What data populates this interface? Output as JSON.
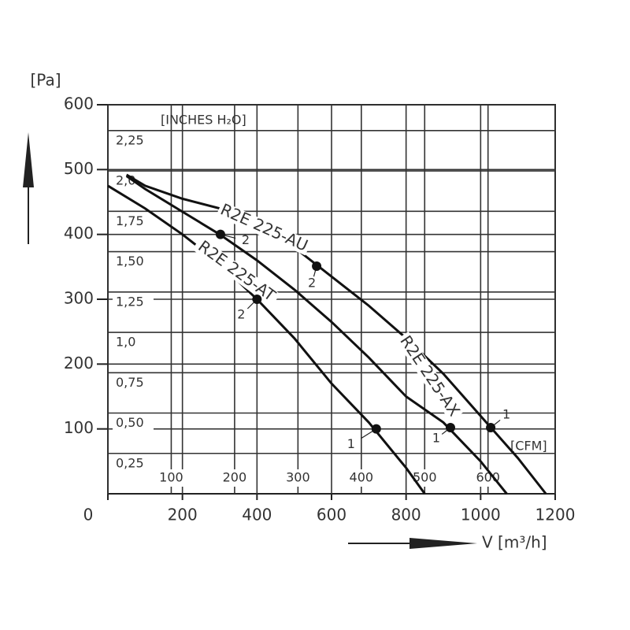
{
  "chart_data": {
    "type": "line",
    "y_label": "[Pa]",
    "x_label": "V [m³/h]",
    "y2_label": "[INCHES H₂O]",
    "x2_label": "[CFM]",
    "xlim": [
      0,
      1200
    ],
    "xticks": [
      0,
      200,
      400,
      600,
      800,
      1000,
      1200
    ],
    "ylim": [
      0,
      600
    ],
    "yticks": [
      100,
      200,
      300,
      400,
      500,
      600
    ],
    "x2lim": [
      0,
      706
    ],
    "x2ticks": [
      100,
      200,
      300,
      400,
      500,
      600
    ],
    "y2lim": [
      0,
      2.41
    ],
    "y2ticks": [
      {
        "value": 0.25,
        "label": "0,25"
      },
      {
        "value": 0.5,
        "label": "0,50"
      },
      {
        "value": 0.75,
        "label": "0,75"
      },
      {
        "value": 1.0,
        "label": "1,0"
      },
      {
        "value": 1.25,
        "label": "1,25"
      },
      {
        "value": 1.5,
        "label": "1,50"
      },
      {
        "value": 1.75,
        "label": "1,75"
      },
      {
        "value": 2.0,
        "label": "2,0"
      },
      {
        "value": 2.25,
        "label": "2,25"
      }
    ],
    "grid": true,
    "series": [
      {
        "name": "R2E 225-AU",
        "color": "#111111",
        "x": [
          50,
          100,
          200,
          300,
          400,
          500,
          600,
          700,
          800,
          900,
          1000,
          1100,
          1175
        ],
        "y": [
          492,
          475,
          455,
          440,
          415,
          380,
          335,
          290,
          240,
          185,
          120,
          55,
          0
        ],
        "points": [
          {
            "x": 560,
            "y": 351,
            "label": "2"
          },
          {
            "x": 1027,
            "y": 102,
            "label": "1"
          }
        ]
      },
      {
        "name": "R2E 225-AX",
        "color": "#111111",
        "x": [
          50,
          100,
          200,
          300,
          400,
          500,
          600,
          700,
          800,
          900,
          1000,
          1070
        ],
        "y": [
          490,
          470,
          435,
          400,
          360,
          315,
          265,
          210,
          150,
          110,
          50,
          0
        ],
        "points": [
          {
            "x": 302,
            "y": 400,
            "label": "2"
          },
          {
            "x": 919,
            "y": 102,
            "label": "1"
          }
        ]
      },
      {
        "name": "R2E 225-AT",
        "color": "#111111",
        "x": [
          0,
          100,
          200,
          300,
          400,
          500,
          600,
          700,
          800,
          850
        ],
        "y": [
          475,
          440,
          400,
          355,
          300,
          240,
          170,
          110,
          40,
          0
        ],
        "points": [
          {
            "x": 400,
            "y": 300,
            "label": "2"
          },
          {
            "x": 720,
            "y": 100,
            "label": "1"
          }
        ]
      }
    ]
  }
}
